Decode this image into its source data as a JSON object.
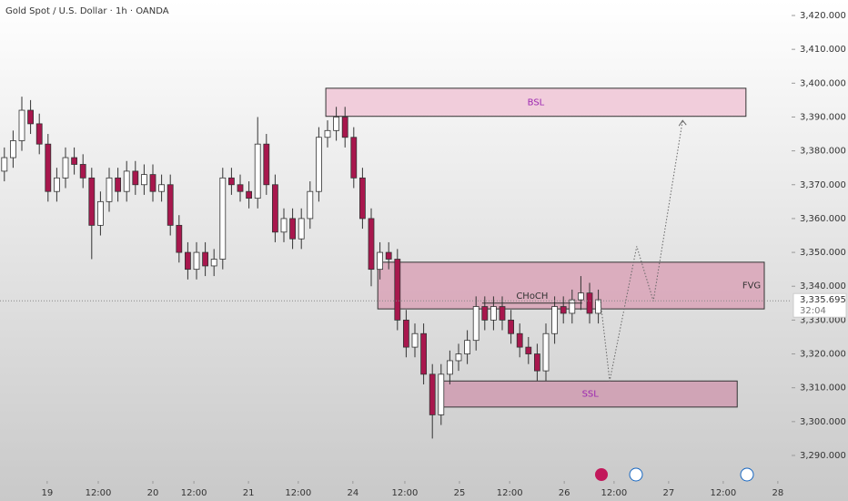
{
  "chart_data": {
    "type": "candlestick",
    "title": "Gold Spot / U.S. Dollar · 1h · OANDA",
    "x": [
      1,
      3,
      5,
      7,
      9,
      11,
      13,
      15,
      17,
      19,
      21,
      23,
      25,
      27,
      29,
      31,
      33,
      35,
      37,
      39,
      41,
      43,
      45,
      47,
      49,
      51,
      53,
      55,
      57,
      59,
      61,
      63,
      65,
      67,
      69,
      71,
      73,
      75,
      77,
      79,
      81,
      83,
      85,
      87,
      89,
      91,
      93,
      95,
      97,
      99,
      101,
      103,
      105,
      107,
      109,
      111,
      113,
      115,
      117,
      119,
      121,
      123,
      125,
      127,
      129,
      131,
      133,
      135,
      137
    ],
    "open": [
      3374,
      3378,
      3383,
      3392,
      3388,
      3382,
      3368,
      3372,
      3378,
      3376,
      3372,
      3358,
      3365,
      3372,
      3368,
      3374,
      3370,
      3373,
      3368,
      3370,
      3358,
      3350,
      3345,
      3350,
      3346,
      3348,
      3372,
      3370,
      3368,
      3366,
      3382,
      3370,
      3356,
      3360,
      3354,
      3360,
      3368,
      3384,
      3386,
      3390,
      3384,
      3372,
      3360,
      3345,
      3350,
      3348,
      3330,
      3322,
      3326,
      3314,
      3302,
      3314,
      3318,
      3320,
      3324,
      3334,
      3330,
      3334,
      3330,
      3326,
      3322,
      3320,
      3315,
      3326,
      3334,
      3332,
      3336,
      3338,
      3332
    ],
    "high": [
      3381,
      3386,
      3396,
      3395,
      3391,
      3385,
      3375,
      3381,
      3381,
      3379,
      3375,
      3368,
      3375,
      3375,
      3377,
      3377,
      3376,
      3376,
      3373,
      3373,
      3361,
      3353,
      3353,
      3353,
      3351,
      3375,
      3375,
      3373,
      3371,
      3390,
      3385,
      3373,
      3363,
      3363,
      3363,
      3371,
      3387,
      3389,
      3393,
      3393,
      3387,
      3375,
      3363,
      3353,
      3353,
      3351,
      3333,
      3329,
      3329,
      3317,
      3317,
      3321,
      3323,
      3327,
      3337,
      3337,
      3337,
      3337,
      3333,
      3329,
      3325,
      3323,
      3329,
      3337,
      3337,
      3339,
      3343,
      3341,
      3339
    ],
    "low": [
      3371,
      3375,
      3380,
      3385,
      3379,
      3365,
      3365,
      3369,
      3373,
      3369,
      3348,
      3355,
      3362,
      3365,
      3365,
      3367,
      3367,
      3365,
      3365,
      3355,
      3347,
      3342,
      3342,
      3343,
      3343,
      3345,
      3367,
      3365,
      3363,
      3363,
      3367,
      3353,
      3353,
      3351,
      3351,
      3357,
      3365,
      3381,
      3383,
      3381,
      3369,
      3357,
      3340,
      3342,
      3345,
      3327,
      3319,
      3319,
      3311,
      3295,
      3299,
      3311,
      3315,
      3317,
      3321,
      3327,
      3327,
      3327,
      3323,
      3319,
      3317,
      3312,
      3312,
      3323,
      3329,
      3329,
      3333,
      3329,
      3329
    ],
    "close": [
      3378,
      3383,
      3392,
      3388,
      3382,
      3368,
      3372,
      3378,
      3376,
      3372,
      3358,
      3365,
      3372,
      3368,
      3374,
      3370,
      3373,
      3368,
      3370,
      3358,
      3350,
      3345,
      3350,
      3346,
      3348,
      3372,
      3370,
      3368,
      3366,
      3382,
      3370,
      3356,
      3360,
      3354,
      3360,
      3368,
      3384,
      3386,
      3390,
      3384,
      3372,
      3360,
      3345,
      3350,
      3348,
      3330,
      3322,
      3326,
      3314,
      3302,
      3314,
      3318,
      3320,
      3324,
      3334,
      3330,
      3334,
      3330,
      3326,
      3322,
      3320,
      3315,
      3326,
      3334,
      3332,
      3336,
      3338,
      3332,
      3336
    ],
    "up_color": "#ffffff",
    "down_color": "#a8174d",
    "xlim": [
      0,
      181.25
    ],
    "xticks": [
      {
        "value": 10.8,
        "label": "19"
      },
      {
        "value": 22.5,
        "label": "12:00"
      },
      {
        "value": 35,
        "label": "20"
      },
      {
        "value": 44.4,
        "label": "12:00"
      },
      {
        "value": 56.9,
        "label": "21"
      },
      {
        "value": 68.3,
        "label": "12:00"
      },
      {
        "value": 80.8,
        "label": "24"
      },
      {
        "value": 92.7,
        "label": "12:00"
      },
      {
        "value": 105.2,
        "label": "25"
      },
      {
        "value": 116.7,
        "label": "12:00"
      },
      {
        "value": 129.2,
        "label": "26"
      },
      {
        "value": 140.6,
        "label": "12:00"
      },
      {
        "value": 153.1,
        "label": "27"
      },
      {
        "value": 165.6,
        "label": "12:00"
      },
      {
        "value": 178.1,
        "label": "28"
      }
    ],
    "ylim": [
      3290,
      3420
    ],
    "yticks": [
      {
        "value": 3290,
        "label": "3,290.000"
      },
      {
        "value": 3300,
        "label": "3,300.000"
      },
      {
        "value": 3310,
        "label": "3,310.000"
      },
      {
        "value": 3320,
        "label": "3,320.000"
      },
      {
        "value": 3330,
        "label": "3,330.000"
      },
      {
        "value": 3340,
        "label": "3,340.000"
      },
      {
        "value": 3350,
        "label": "3,350.000"
      },
      {
        "value": 3360,
        "label": "3,360.000"
      },
      {
        "value": 3370,
        "label": "3,370.000"
      },
      {
        "value": 3380,
        "label": "3,380.000"
      },
      {
        "value": 3390,
        "label": "3,390.000"
      },
      {
        "value": 3400,
        "label": "3,400.000"
      },
      {
        "value": 3410,
        "label": "3,410.000"
      },
      {
        "value": 3420,
        "label": "3,420.000"
      }
    ],
    "zones": [
      {
        "label": "BSL",
        "x": [
          74.6,
          170.8
        ],
        "y": [
          3390.2,
          3398.5
        ],
        "color": "#f0c6d6",
        "label_color": "#9c27b0"
      },
      {
        "label": "FVG",
        "x": [
          86.5,
          175
        ],
        "y": [
          3333.3,
          3347.1
        ],
        "color": "#d9a3b7",
        "label_color": "#333333"
      },
      {
        "label": "SSL",
        "x": [
          101.5,
          168.8
        ],
        "y": [
          3304.3,
          3312
        ],
        "color": "#cf9bb0",
        "label_color": "#9c27b0"
      }
    ],
    "choch": {
      "label": "CHoCH",
      "x": [
        110.4,
        133.3
      ],
      "y": 3335
    },
    "projection": {
      "x": [
        137.5,
        139.6,
        145.8,
        149.6,
        156.3
      ],
      "y": [
        3335.6,
        3312,
        3351.8,
        3335.6,
        3389
      ]
    },
    "last_price": {
      "value": 3335.695,
      "label": "3,335.695"
    },
    "countdown": "32:04"
  }
}
